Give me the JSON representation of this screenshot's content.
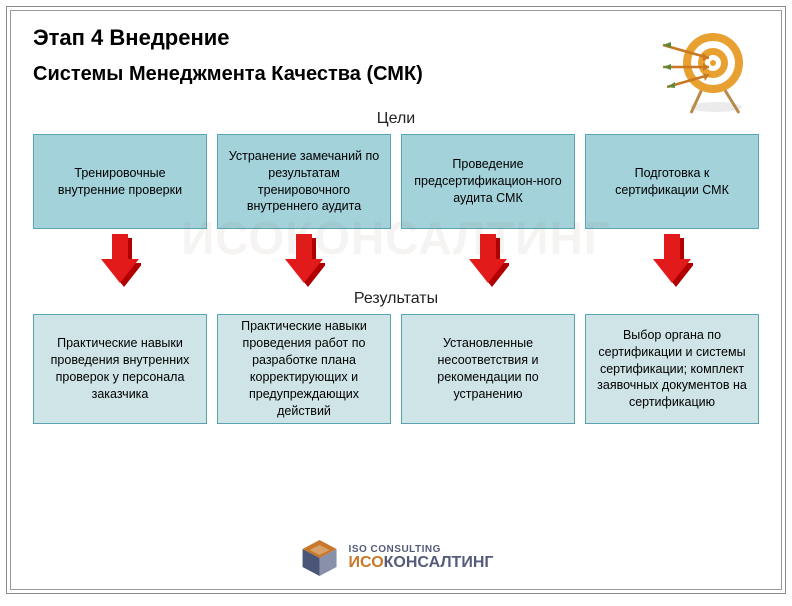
{
  "title": "Этап 4 Внедрение",
  "subtitle": "Системы Менеджмента Качества (СМК)",
  "section_goals_label": "Цели",
  "section_results_label": "Результаты",
  "goals_box_bg": "#a3d2da",
  "goals_box_border": "#5aa6b0",
  "goals_box_height": 95,
  "results_box_bg": "#cfe4e6",
  "results_box_border": "#5aa6b0",
  "results_box_height": 110,
  "arrow_fill": "#e21a1a",
  "arrow_shadow": "#b00000",
  "goals": [
    "Тренировочные внутренние проверки",
    "Устранение замечаний по результатам тренировочного внутреннего аудита",
    "Проведение предсертификацион-ного аудита СМК",
    "Подготовка к сертификации СМК"
  ],
  "results": [
    "Практические навыки проведения внутренних проверок у персонала заказчика",
    "Практические  навыки проведения работ по разработке плана корректирующих и предупреждающих действий",
    "Установленные несоответствия и рекомендации по устранению",
    "Выбор органа по сертификации и системы сертификации; комплект заявочных документов на сертификацию"
  ],
  "footer": {
    "top": "ISO CONSULTING",
    "iso": "ИСО",
    "cons": "КОНСАЛТИНГ"
  },
  "watermark": "ИСОКОНСАЛТИНГ"
}
